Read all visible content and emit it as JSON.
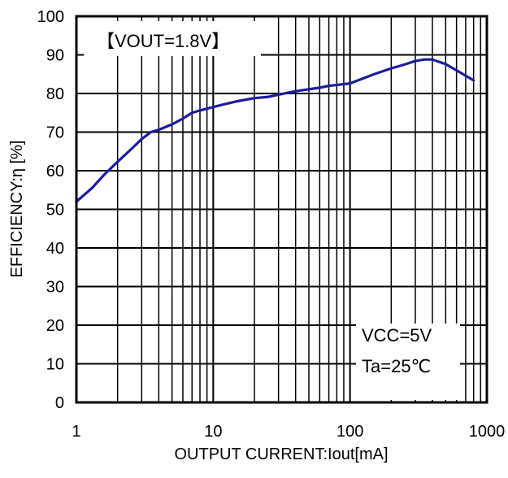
{
  "chart_data": {
    "type": "line",
    "title": "",
    "xlabel": "OUTPUT CURRENT:Iout[mA]",
    "ylabel": "EFFICIENCY:η [%]",
    "xscale": "log",
    "xlim": [
      1,
      1000
    ],
    "ylim": [
      0,
      100
    ],
    "xticks": [
      1,
      10,
      100,
      1000
    ],
    "xtick_labels": [
      "1",
      "10",
      "100",
      "1000"
    ],
    "yticks": [
      0,
      10,
      20,
      30,
      40,
      50,
      60,
      70,
      80,
      90,
      100
    ],
    "ytick_labels": [
      "0",
      "10",
      "20",
      "30",
      "40",
      "50",
      "60",
      "70",
      "80",
      "90",
      "100"
    ],
    "grid": true,
    "line_color": "#1c1c9c",
    "annotations": {
      "condition_top_left": "【VOUT=1.8V】",
      "condition_bottom_right_1": "VCC=5V",
      "condition_bottom_right_2": "Ta=25℃"
    },
    "series": [
      {
        "x": [
          1,
          1.3,
          1.6,
          2,
          2.5,
          3,
          3.5,
          4,
          5,
          6,
          7,
          8,
          10,
          12,
          15,
          20,
          25,
          30,
          40,
          50,
          60,
          70,
          80,
          100,
          150,
          200,
          250,
          300,
          350,
          400,
          500,
          600,
          700,
          800
        ],
        "values": [
          52,
          55.5,
          59,
          62.3,
          65.5,
          68.2,
          70,
          70.6,
          72,
          73.5,
          75,
          75.6,
          76.5,
          77.2,
          78,
          78.8,
          79.1,
          79.7,
          80.6,
          81.1,
          81.5,
          82,
          82.2,
          82.6,
          85,
          86.5,
          87.5,
          88.4,
          88.8,
          88.8,
          87.6,
          86,
          84.6,
          83.4
        ]
      }
    ]
  }
}
